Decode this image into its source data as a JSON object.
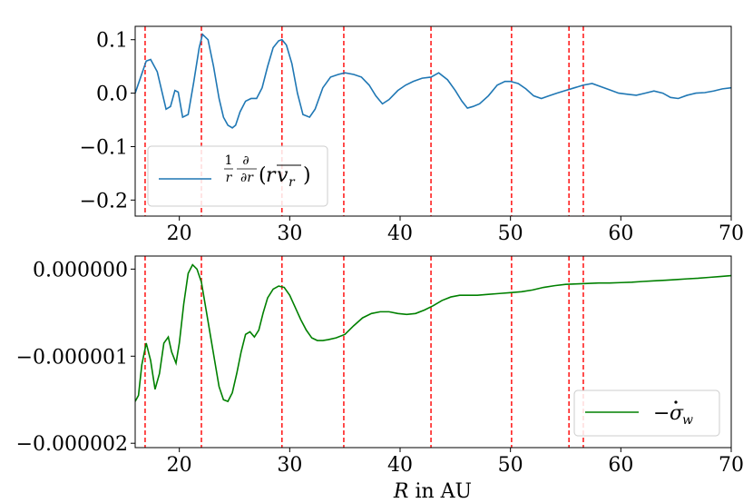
{
  "chart_data": [
    {
      "type": "line",
      "panel": "top",
      "xlim": [
        16,
        70
      ],
      "ylim": [
        -0.23,
        0.125
      ],
      "xticks": [
        20,
        30,
        40,
        50,
        60,
        70
      ],
      "xtick_labels": [
        "20",
        "30",
        "40",
        "50",
        "60",
        "70"
      ],
      "yticks": [
        0.1,
        0.0,
        -0.1,
        -0.2
      ],
      "ytick_labels": [
        "0.1",
        "0.0",
        "−0.1",
        "−0.2"
      ],
      "vlines": [
        16.9,
        22.0,
        29.3,
        34.9,
        42.8,
        50.1,
        55.3,
        56.6
      ],
      "vline_color": "#ff0000",
      "legend_position": "lower-left",
      "series": [
        {
          "name": "1/r ∂/∂r (r v̄_r)",
          "color": "#1f77b4",
          "x": [
            16.0,
            16.5,
            17.0,
            17.4,
            18.0,
            18.4,
            18.8,
            19.2,
            19.6,
            19.9,
            20.3,
            20.8,
            21.3,
            21.8,
            22.1,
            22.6,
            23.1,
            23.6,
            24.0,
            24.4,
            24.8,
            25.1,
            25.5,
            26.0,
            26.5,
            27.0,
            27.5,
            28.0,
            28.5,
            29.0,
            29.3,
            29.7,
            30.2,
            30.7,
            31.2,
            31.8,
            32.3,
            33.0,
            33.7,
            34.4,
            35.0,
            35.8,
            36.5,
            37.2,
            37.8,
            38.4,
            39.0,
            39.8,
            40.5,
            41.2,
            42.0,
            42.8,
            43.5,
            44.3,
            45.0,
            45.6,
            46.1,
            46.6,
            47.2,
            48.0,
            48.8,
            49.5,
            50.0,
            50.7,
            51.4,
            52.1,
            52.8,
            53.5,
            54.2,
            55.0,
            55.8,
            56.6,
            57.4,
            58.2,
            59.0,
            59.8,
            60.6,
            61.4,
            62.2,
            63.0,
            63.8,
            64.5,
            65.2,
            66.0,
            66.8,
            67.6,
            68.4,
            69.2,
            70.0
          ],
          "y": [
            0.0,
            0.03,
            0.06,
            0.063,
            0.04,
            0.005,
            -0.03,
            -0.025,
            0.005,
            0.002,
            -0.045,
            -0.04,
            0.02,
            0.085,
            0.11,
            0.1,
            0.05,
            -0.01,
            -0.045,
            -0.06,
            -0.065,
            -0.06,
            -0.035,
            -0.015,
            -0.01,
            -0.01,
            0.01,
            0.05,
            0.085,
            0.098,
            0.1,
            0.09,
            0.055,
            0.0,
            -0.04,
            -0.045,
            -0.03,
            0.01,
            0.03,
            0.035,
            0.038,
            0.035,
            0.03,
            0.015,
            -0.005,
            -0.02,
            -0.012,
            0.005,
            0.015,
            0.022,
            0.028,
            0.03,
            0.038,
            0.025,
            0.005,
            -0.015,
            -0.028,
            -0.025,
            -0.02,
            -0.005,
            0.015,
            0.022,
            0.022,
            0.018,
            0.008,
            -0.005,
            -0.01,
            -0.005,
            0.0,
            0.005,
            0.01,
            0.015,
            0.018,
            0.012,
            0.006,
            0.0,
            -0.002,
            -0.004,
            0.0,
            0.004,
            0.0,
            -0.008,
            -0.01,
            -0.004,
            0.0,
            0.001,
            0.004,
            0.008,
            0.01
          ]
        }
      ]
    },
    {
      "type": "line",
      "panel": "bottom",
      "xlim": [
        16,
        70
      ],
      "ylim": [
        -2.05e-06,
        1.5e-07
      ],
      "xticks": [
        20,
        30,
        40,
        50,
        60,
        70
      ],
      "xtick_labels": [
        "20",
        "30",
        "40",
        "50",
        "60",
        "70"
      ],
      "yticks": [
        0.0,
        -1e-06,
        -2e-06
      ],
      "ytick_labels": [
        "0.000000",
        "−0.000001",
        "−0.000002"
      ],
      "xlabel": "R in AU",
      "vlines": [
        16.9,
        22.0,
        29.3,
        34.9,
        42.8,
        50.1,
        55.3,
        56.6
      ],
      "vline_color": "#ff0000",
      "legend_position": "lower-right",
      "series": [
        {
          "name": "−σ̇_w",
          "color": "#008000",
          "x": [
            16.0,
            16.3,
            16.6,
            17.0,
            17.4,
            17.8,
            18.2,
            18.6,
            19.0,
            19.3,
            19.7,
            20.0,
            20.4,
            20.8,
            21.2,
            21.6,
            22.0,
            22.4,
            22.8,
            23.2,
            23.6,
            24.0,
            24.4,
            24.8,
            25.2,
            25.6,
            26.0,
            26.4,
            26.8,
            27.2,
            27.6,
            28.0,
            28.5,
            29.0,
            29.5,
            30.0,
            30.5,
            31.0,
            31.5,
            32.0,
            32.5,
            33.0,
            33.5,
            34.2,
            35.0,
            35.8,
            36.6,
            37.4,
            38.2,
            39.0,
            39.8,
            40.6,
            41.4,
            42.2,
            43.0,
            43.8,
            44.6,
            45.4,
            46.2,
            47.0,
            48.0,
            49.0,
            50.0,
            51.0,
            52.0,
            53.0,
            54.0,
            55.0,
            56.0,
            57.0,
            58.0,
            59.0,
            60.0,
            61.0,
            62.0,
            63.0,
            64.0,
            65.0,
            66.0,
            67.0,
            68.0,
            69.0,
            70.0
          ],
          "y": [
            -1.52e-06,
            -1.45e-06,
            -1.1e-06,
            -8.5e-07,
            -1.05e-06,
            -1.38e-06,
            -1.2e-06,
            -8.5e-07,
            -7.8e-07,
            -9.5e-07,
            -1.08e-06,
            -8.5e-07,
            -4e-07,
            -5e-08,
            5e-08,
            0.0,
            -1.5e-07,
            -4.5e-07,
            -7.5e-07,
            -1.05e-06,
            -1.35e-06,
            -1.5e-06,
            -1.52e-06,
            -1.42e-06,
            -1.2e-06,
            -9.5e-07,
            -7.5e-07,
            -7.2e-07,
            -7.8e-07,
            -7e-07,
            -5e-07,
            -3.3e-07,
            -2.3e-07,
            -1.95e-07,
            -2.1e-07,
            -3e-07,
            -4.4e-07,
            -5.8e-07,
            -7e-07,
            -7.9e-07,
            -8.2e-07,
            -8.2e-07,
            -8.1e-07,
            -7.9e-07,
            -7.5e-07,
            -6.5e-07,
            -5.6e-07,
            -5.1e-07,
            -4.9e-07,
            -4.9e-07,
            -5.1e-07,
            -5.2e-07,
            -5.1e-07,
            -4.7e-07,
            -4.2e-07,
            -3.6e-07,
            -3.2e-07,
            -3e-07,
            -3e-07,
            -3e-07,
            -2.9e-07,
            -2.8e-07,
            -2.7e-07,
            -2.6e-07,
            -2.4e-07,
            -2.1e-07,
            -1.9e-07,
            -1.75e-07,
            -1.7e-07,
            -1.65e-07,
            -1.6e-07,
            -1.6e-07,
            -1.55e-07,
            -1.5e-07,
            -1.42e-07,
            -1.35e-07,
            -1.28e-07,
            -1.2e-07,
            -1.12e-07,
            -1.05e-07,
            -9.5e-08,
            -8.5e-08,
            -7.5e-08
          ]
        }
      ]
    }
  ]
}
